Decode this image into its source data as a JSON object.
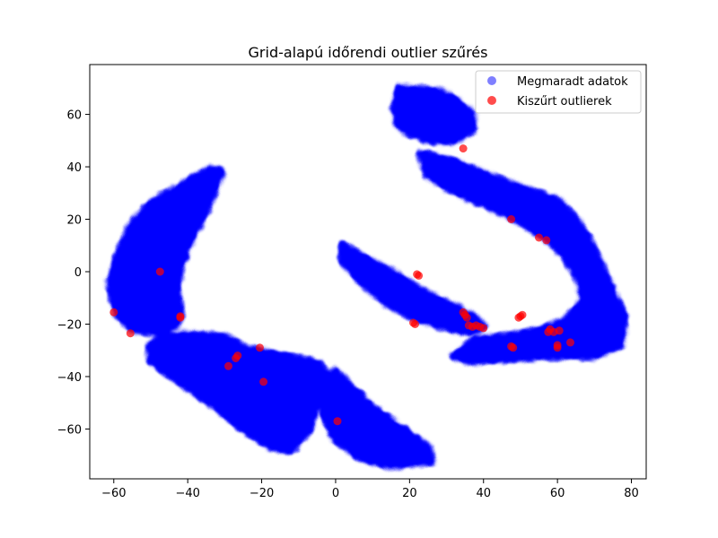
{
  "chart_data": {
    "type": "scatter",
    "title": "Grid-alapú időrendi outlier szűrés",
    "xlabel": "",
    "ylabel": "",
    "xlim": [
      -66.5,
      84
    ],
    "ylim": [
      -79,
      79
    ],
    "x_ticks": [
      -60,
      -40,
      -20,
      0,
      20,
      40,
      60,
      80
    ],
    "y_ticks": [
      -60,
      -40,
      -20,
      0,
      20,
      40,
      60
    ],
    "grid": false,
    "legend_position": "upper right",
    "series": [
      {
        "name": "Megmaradt adatok",
        "color": "#0000ff",
        "alpha": 0.5,
        "regions": [
          {
            "label": "upper-left arc",
            "outline": [
              [
                -34,
                39
              ],
              [
                -31,
                38
              ],
              [
                -33,
                30
              ],
              [
                -36,
                21
              ],
              [
                -40,
                10
              ],
              [
                -42,
                2
              ],
              [
                -43,
                -7
              ],
              [
                -42,
                -16
              ],
              [
                -43,
                -20
              ],
              [
                -46,
                -22
              ],
              [
                -50,
                -23
              ],
              [
                -55,
                -22
              ],
              [
                -59,
                -16
              ],
              [
                -61,
                -5
              ],
              [
                -59,
                6
              ],
              [
                -55,
                18
              ],
              [
                -50,
                26
              ],
              [
                -45,
                30
              ],
              [
                -39,
                35
              ]
            ]
          },
          {
            "label": "lower-left band",
            "outline": [
              [
                -50,
                -28
              ],
              [
                -47,
                -25
              ],
              [
                -40,
                -24
              ],
              [
                -30,
                -25
              ],
              [
                -25,
                -29
              ],
              [
                -15,
                -32
              ],
              [
                -5,
                -35
              ],
              [
                -3,
                -38
              ],
              [
                -5,
                -48
              ],
              [
                -7,
                -60
              ],
              [
                -12,
                -68
              ],
              [
                -17,
                -67
              ],
              [
                -25,
                -60
              ],
              [
                -32,
                -52
              ],
              [
                -38,
                -46
              ],
              [
                -44,
                -40
              ],
              [
                -50,
                -34
              ]
            ]
          },
          {
            "label": "lower-center lobe",
            "outline": [
              [
                -2,
                -40
              ],
              [
                0,
                -38
              ],
              [
                4,
                -44
              ],
              [
                10,
                -52
              ],
              [
                18,
                -60
              ],
              [
                25,
                -67
              ],
              [
                26,
                -72
              ],
              [
                15,
                -74
              ],
              [
                7,
                -71
              ],
              [
                0,
                -64
              ],
              [
                -3,
                -55
              ],
              [
                -4,
                -46
              ]
            ]
          },
          {
            "label": "upper-right blob",
            "outline": [
              [
                17,
                70
              ],
              [
                27,
                69
              ],
              [
                32,
                66
              ],
              [
                37,
                60
              ],
              [
                37,
                54
              ],
              [
                32,
                50
              ],
              [
                26,
                50
              ],
              [
                20,
                53
              ],
              [
                17,
                56
              ],
              [
                16,
                62
              ]
            ]
          },
          {
            "label": "right arc",
            "outline": [
              [
                23,
                45
              ],
              [
                32,
                42
              ],
              [
                42,
                36
              ],
              [
                52,
                31
              ],
              [
                60,
                27
              ],
              [
                65,
                20
              ],
              [
                70,
                8
              ],
              [
                74,
                -5
              ],
              [
                78,
                -17
              ],
              [
                77,
                -28
              ],
              [
                70,
                -32
              ],
              [
                58,
                -32
              ],
              [
                47,
                -33
              ],
              [
                36,
                -34
              ],
              [
                32,
                -32
              ],
              [
                38,
                -26
              ],
              [
                46,
                -25
              ],
              [
                56,
                -22
              ],
              [
                62,
                -19
              ],
              [
                67,
                -11
              ],
              [
                66,
                -3
              ],
              [
                62,
                6
              ],
              [
                57,
                13
              ],
              [
                49,
                20
              ],
              [
                40,
                26
              ],
              [
                30,
                32
              ],
              [
                25,
                37
              ],
              [
                24,
                41
              ]
            ]
          },
          {
            "label": "center elongated arm",
            "outline": [
              [
                2,
                10
              ],
              [
                8,
                5
              ],
              [
                16,
                -1
              ],
              [
                24,
                -8
              ],
              [
                30,
                -12
              ],
              [
                37,
                -17
              ],
              [
                40,
                -21
              ],
              [
                36,
                -23
              ],
              [
                30,
                -21
              ],
              [
                22,
                -18
              ],
              [
                14,
                -12
              ],
              [
                7,
                -4
              ],
              [
                2,
                4
              ]
            ]
          }
        ]
      },
      {
        "name": "Kiszűrt outlierek",
        "color": "#ff0000",
        "alpha": 0.7,
        "x": [
          -47.5,
          -60,
          -55.5,
          -42,
          -42,
          -29,
          -27,
          -26.5,
          -20.5,
          -19.5,
          0.5,
          21,
          21.5,
          22,
          22.5,
          34.5,
          34.5,
          35,
          35.5,
          36,
          37,
          38,
          39,
          40,
          47.5,
          47.5,
          48,
          49.5,
          50,
          50.5,
          55,
          57,
          57.5,
          58,
          59,
          60,
          60,
          60.5,
          63.5
        ],
        "y": [
          0,
          -15.5,
          -23.5,
          -17,
          -17.5,
          -36,
          -33,
          -32,
          -29,
          -42,
          -57,
          -19.5,
          -20,
          -1,
          -1.5,
          47,
          -15.5,
          -16.5,
          -17.5,
          -20.5,
          -21,
          -20.5,
          -21,
          -21.5,
          20,
          -28.5,
          -29,
          -17.5,
          -17,
          -16.5,
          13,
          12,
          -23,
          -22,
          -23,
          -28,
          -29,
          -22.5,
          -27
        ]
      }
    ]
  }
}
